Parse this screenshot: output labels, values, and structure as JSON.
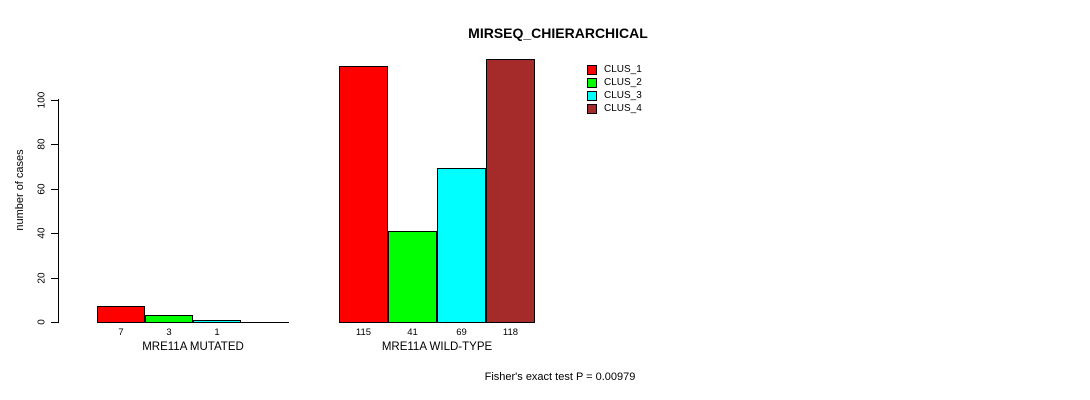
{
  "title": "MIRSEQ_CHIERARCHICAL",
  "annotation": "Fisher's exact test P = 0.00979",
  "y_axis": {
    "label": "number of cases",
    "ticks": [
      0,
      20,
      40,
      60,
      80,
      100
    ]
  },
  "groups": {
    "mutated_label": "MRE11A MUTATED",
    "wildtype_label": "MRE11A WILD-TYPE"
  },
  "legend": {
    "items": [
      {
        "label": "CLUS_1",
        "color": "#FF0000"
      },
      {
        "label": "CLUS_2",
        "color": "#00FF00"
      },
      {
        "label": "CLUS_3",
        "color": "#00FFFF"
      },
      {
        "label": "CLUS_4",
        "color": "#A52A2A"
      }
    ]
  },
  "chart_data": {
    "type": "bar",
    "title": "MIRSEQ_CHIERARCHICAL",
    "categories": [
      "MRE11A MUTATED",
      "MRE11A WILD-TYPE"
    ],
    "series": [
      {
        "name": "CLUS_1",
        "color": "#FF0000",
        "values": [
          7,
          115
        ]
      },
      {
        "name": "CLUS_2",
        "color": "#00FF00",
        "values": [
          3,
          41
        ]
      },
      {
        "name": "CLUS_3",
        "color": "#00FFFF",
        "values": [
          1,
          69
        ]
      },
      {
        "name": "CLUS_4",
        "color": "#A52A2A",
        "values": [
          0,
          118
        ]
      }
    ],
    "bar_labels": [
      [
        "7",
        "3",
        "1",
        ""
      ],
      [
        "115",
        "41",
        "69",
        "118"
      ]
    ],
    "xlabel": "",
    "ylabel": "number of cases",
    "ylim": [
      0,
      100
    ],
    "yticks": [
      0,
      20,
      40,
      60,
      80,
      100
    ],
    "grid": false,
    "legend_position": "top-right",
    "annotation": "Fisher's exact test P = 0.00979"
  }
}
